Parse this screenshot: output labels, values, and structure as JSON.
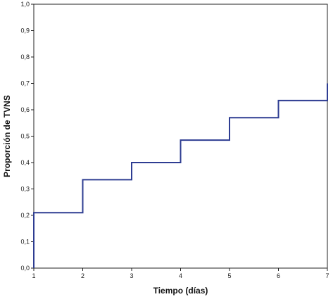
{
  "chart_data": {
    "type": "line",
    "step": true,
    "title": "",
    "xlabel": "Tiempo (días)",
    "ylabel": "Proporción de TVNS",
    "xlim": [
      1,
      7
    ],
    "ylim": [
      0,
      1
    ],
    "x_ticks": [
      "1",
      "2",
      "3",
      "4",
      "5",
      "6",
      "7"
    ],
    "y_ticks": [
      "0,0",
      "0,1",
      "0,2",
      "0,3",
      "0,4",
      "0,5",
      "0,6",
      "0,7",
      "0,8",
      "0,9",
      "1,0"
    ],
    "grid": false,
    "series": [
      {
        "color": "#2e3d92",
        "points": [
          {
            "x": 1,
            "y": 0.0
          },
          {
            "x": 1,
            "y": 0.21
          },
          {
            "x": 2,
            "y": 0.21
          },
          {
            "x": 2,
            "y": 0.335
          },
          {
            "x": 3,
            "y": 0.335
          },
          {
            "x": 3,
            "y": 0.4
          },
          {
            "x": 4,
            "y": 0.4
          },
          {
            "x": 4,
            "y": 0.485
          },
          {
            "x": 5,
            "y": 0.485
          },
          {
            "x": 5,
            "y": 0.57
          },
          {
            "x": 6,
            "y": 0.57
          },
          {
            "x": 6,
            "y": 0.635
          },
          {
            "x": 7,
            "y": 0.635
          },
          {
            "x": 7,
            "y": 0.7
          }
        ]
      }
    ],
    "colors": {
      "axis": "#222222",
      "line": "#2e3d92"
    }
  }
}
